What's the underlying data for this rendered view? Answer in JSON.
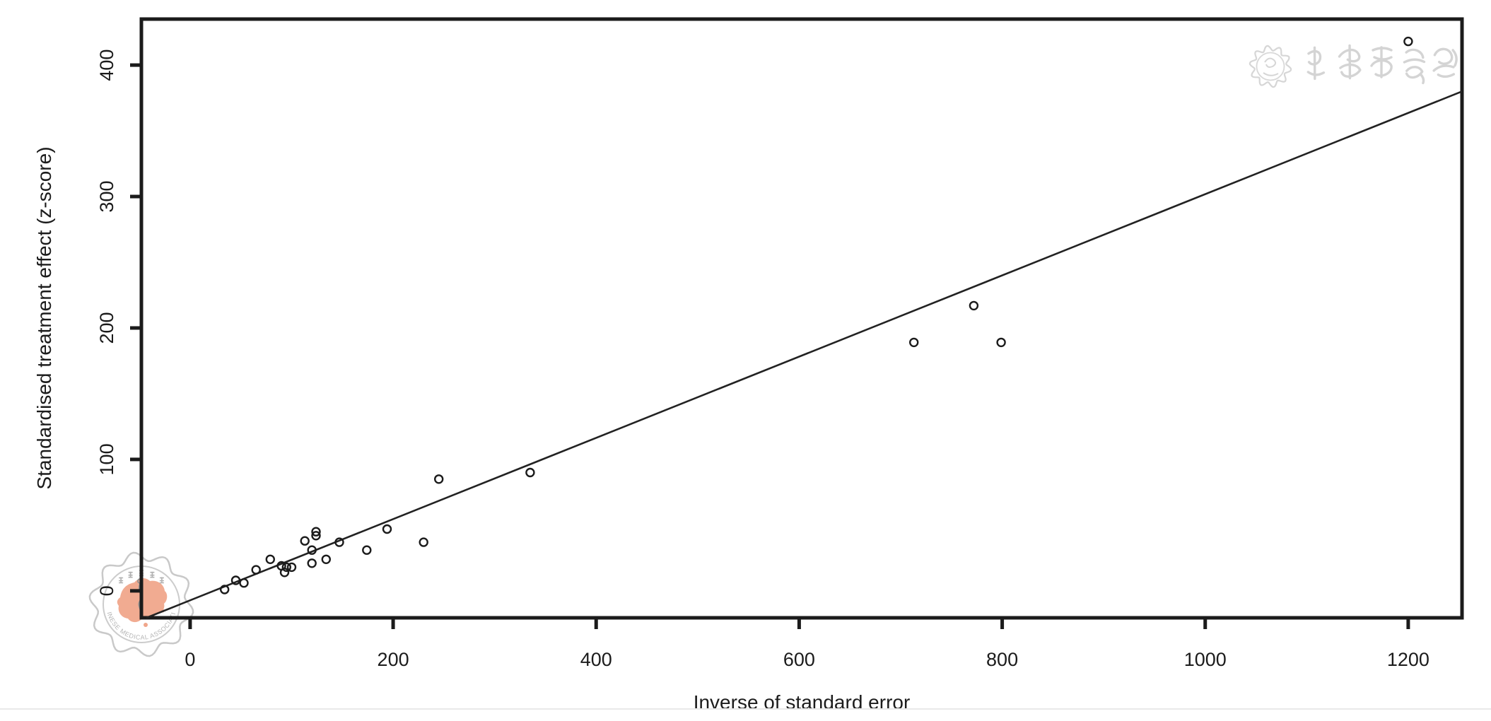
{
  "figure": {
    "background": "#ffffff",
    "xlabel": "Inverse of standard error",
    "ylabel": "Standardised treatment effect (z-score)"
  },
  "chart_data": {
    "type": "scatter",
    "title": "",
    "xlabel": "Inverse of standard error",
    "ylabel": "Standardised treatment effect (z-score)",
    "xlim": [
      -48,
      1253
    ],
    "ylim": [
      -20.5,
      435
    ],
    "x_ticks": [
      0,
      200,
      400,
      600,
      800,
      1000,
      1200
    ],
    "y_ticks": [
      0,
      100,
      200,
      300,
      400
    ],
    "grid": false,
    "legend": null,
    "marker": "open-circle",
    "points": [
      [
        34,
        1
      ],
      [
        45,
        8
      ],
      [
        53,
        6
      ],
      [
        65,
        16
      ],
      [
        79,
        24
      ],
      [
        90,
        19
      ],
      [
        95,
        18
      ],
      [
        93,
        14
      ],
      [
        100,
        18
      ],
      [
        113,
        38
      ],
      [
        120,
        31
      ],
      [
        120,
        21
      ],
      [
        124,
        45
      ],
      [
        124,
        42
      ],
      [
        134,
        24
      ],
      [
        147,
        37
      ],
      [
        174,
        31
      ],
      [
        194,
        47
      ],
      [
        230,
        37
      ],
      [
        245,
        85
      ],
      [
        335,
        90
      ],
      [
        713,
        189
      ],
      [
        772,
        217
      ],
      [
        799,
        189
      ],
      [
        1200,
        418
      ]
    ],
    "fit_line": {
      "slope": 0.309,
      "intercept": -7.2
    }
  },
  "watermarks": {
    "top_right_text": "中华医学会",
    "seal_text_bottom": "CHINESE MEDICAL ASSOCIATION"
  },
  "colors": {
    "ink": "#1b1b1b",
    "fit_line": "#222222",
    "watermark_gray": "#cccccc",
    "watermark_text_gray": "#b5b5b5",
    "seal_orange": "#f0a68b",
    "edge_line": "#e9e9e9"
  }
}
